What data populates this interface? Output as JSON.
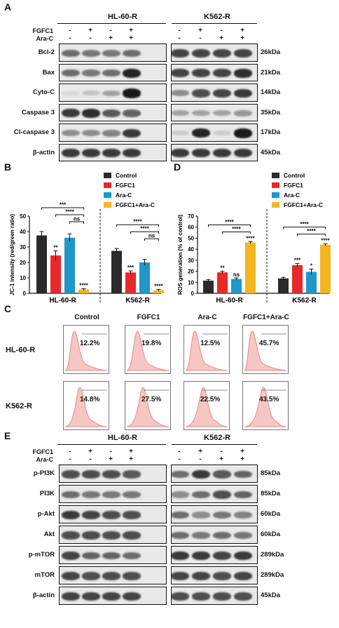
{
  "panels": {
    "a": "A",
    "b": "B",
    "c": "C",
    "d": "D",
    "e": "E"
  },
  "cell_lines": [
    "HL-60-R",
    "K562-R"
  ],
  "treatments": {
    "fgfc1": "FGFC1",
    "arac": "Ara-C"
  },
  "signs": {
    "fgfc1": [
      "-",
      "+",
      "-",
      "+"
    ],
    "arac": [
      "-",
      "-",
      "+",
      "+"
    ]
  },
  "blot_a": {
    "rows": [
      {
        "label": "Bcl-2",
        "kda": "26kDa",
        "hl60": [
          0.55,
          0.5,
          0.5,
          0.55
        ],
        "k562": [
          0.75,
          0.75,
          0.75,
          0.75
        ]
      },
      {
        "label": "Bax",
        "kda": "21kDa",
        "hl60": [
          0.55,
          0.5,
          0.55,
          0.9
        ],
        "k562": [
          0.75,
          0.75,
          0.75,
          0.85
        ]
      },
      {
        "label": "Cyto-C",
        "kda": "14kDa",
        "hl60": [
          0.05,
          0.15,
          0.3,
          0.95
        ],
        "k562": [
          0.4,
          0.7,
          0.75,
          0.8
        ]
      },
      {
        "label": "Caspase 3",
        "kda": "35kDa",
        "hl60": [
          0.8,
          0.85,
          0.65,
          0.6
        ],
        "k562": [
          0.3,
          0.3,
          0.3,
          0.35
        ]
      },
      {
        "label": "Cl-caspase 3",
        "kda": "17kDa",
        "hl60": [
          0.4,
          0.4,
          0.45,
          0.8
        ],
        "k562": [
          0.1,
          0.9,
          0.1,
          0.95
        ]
      },
      {
        "label": "β-actin",
        "kda": "45kDa",
        "hl60": [
          0.8,
          0.8,
          0.8,
          0.8
        ],
        "k562": [
          0.8,
          0.8,
          0.8,
          0.8
        ]
      }
    ]
  },
  "blot_e": {
    "rows": [
      {
        "label": "p-PI3K",
        "kda": "85kDa",
        "hl60": [
          0.7,
          0.7,
          0.7,
          0.65
        ],
        "k562": [
          0.55,
          0.8,
          0.65,
          0.6
        ]
      },
      {
        "label": "PI3K",
        "kda": "85kDa",
        "hl60": [
          0.55,
          0.5,
          0.5,
          0.5
        ],
        "k562": [
          0.4,
          0.55,
          0.7,
          0.6
        ]
      },
      {
        "label": "p-Akt",
        "kda": "60kDa",
        "hl60": [
          0.8,
          0.75,
          0.7,
          0.7
        ],
        "k562": [
          0.55,
          0.4,
          0.5,
          0.45
        ]
      },
      {
        "label": "Akt",
        "kda": "60kDa",
        "hl60": [
          0.7,
          0.7,
          0.7,
          0.7
        ],
        "k562": [
          0.55,
          0.5,
          0.55,
          0.5
        ]
      },
      {
        "label": "p-mTOR",
        "kda": "289kDa",
        "hl60": [
          0.75,
          0.6,
          0.6,
          0.55
        ],
        "k562": [
          0.8,
          0.8,
          0.75,
          0.8
        ]
      },
      {
        "label": "mTOR",
        "kda": "289kDa",
        "hl60": [
          0.75,
          0.7,
          0.7,
          0.7
        ],
        "k562": [
          0.75,
          0.75,
          0.7,
          0.75
        ]
      },
      {
        "label": "β-actin",
        "kda": "45kDa",
        "hl60": [
          0.75,
          0.75,
          0.75,
          0.75
        ],
        "k562": [
          0.7,
          0.7,
          0.7,
          0.7
        ]
      }
    ]
  },
  "legend": [
    "Control",
    "FGFC1",
    "Ara-C",
    "FGFC1+Ara-C"
  ],
  "colors": {
    "control": "#2b2b2b",
    "fgfc1": "#e8282b",
    "arac": "#1f97c8",
    "combo": "#f3b61f"
  },
  "chart_data": [
    {
      "type": "bar",
      "panel": "B",
      "ylabel": "JC-1 intensity (red/green ratio)",
      "categories": [
        "HL-60-R",
        "K562-R"
      ],
      "ylim": [
        0,
        50
      ],
      "series": [
        {
          "name": "Control",
          "values": [
            37.5,
            27.5
          ],
          "errors": [
            2.5,
            1.5
          ]
        },
        {
          "name": "FGFC1",
          "values": [
            24.5,
            13.5
          ],
          "errors": [
            3.0,
            1.0
          ]
        },
        {
          "name": "Ara-C",
          "values": [
            36.0,
            20.0
          ],
          "errors": [
            2.5,
            2.0
          ]
        },
        {
          "name": "FGFC1+Ara-C",
          "values": [
            2.5,
            2.0
          ],
          "errors": [
            0.5,
            0.5
          ]
        }
      ],
      "significance": {
        "HL-60-R": {
          "bar": [
            "",
            "**",
            "",
            "****"
          ],
          "brackets": [
            "***",
            "****",
            "ns"
          ]
        },
        "K562-R": {
          "bar": [
            "",
            "***",
            "",
            "****"
          ],
          "brackets": [
            "****",
            "****",
            "ns"
          ]
        }
      }
    },
    {
      "type": "bar",
      "panel": "D",
      "ylabel": "ROS generation (% of control)",
      "categories": [
        "HL-60-R",
        "K562-R"
      ],
      "ylim": [
        0,
        70
      ],
      "series": [
        {
          "name": "Control",
          "values": [
            11.5,
            13.5
          ],
          "errors": [
            1.0,
            1.0
          ]
        },
        {
          "name": "FGFC1",
          "values": [
            19.0,
            25.5
          ],
          "errors": [
            1.0,
            1.5
          ]
        },
        {
          "name": "Ara-C",
          "values": [
            13.0,
            19.5
          ],
          "errors": [
            1.0,
            2.5
          ]
        },
        {
          "name": "FGFC1+Ara-C",
          "values": [
            46.0,
            44.0
          ],
          "errors": [
            0.8,
            0.8
          ]
        }
      ],
      "significance": {
        "HL-60-R": {
          "bar": [
            "",
            "**",
            "ns",
            "****"
          ],
          "brackets": [
            "****",
            "****"
          ]
        },
        "K562-R": {
          "bar": [
            "",
            "***",
            "*",
            "****"
          ],
          "brackets": [
            "****",
            "****"
          ]
        }
      }
    }
  ],
  "flow": {
    "columns": [
      "Control",
      "FGFC1",
      "Ara-C",
      "FGFC1+Ara-C"
    ],
    "rows": [
      {
        "label": "HL-60-R",
        "percents": [
          "12.2%",
          "19.8%",
          "12.5%",
          "45.7%"
        ],
        "shift": [
          0.15,
          0.2,
          0.15,
          0.1
        ]
      },
      {
        "label": "K562-R",
        "percents": [
          "14.8%",
          "27.5%",
          "22.5%",
          "43.5%"
        ],
        "shift": [
          0.35,
          0.4,
          0.45,
          0.5
        ]
      }
    ]
  }
}
